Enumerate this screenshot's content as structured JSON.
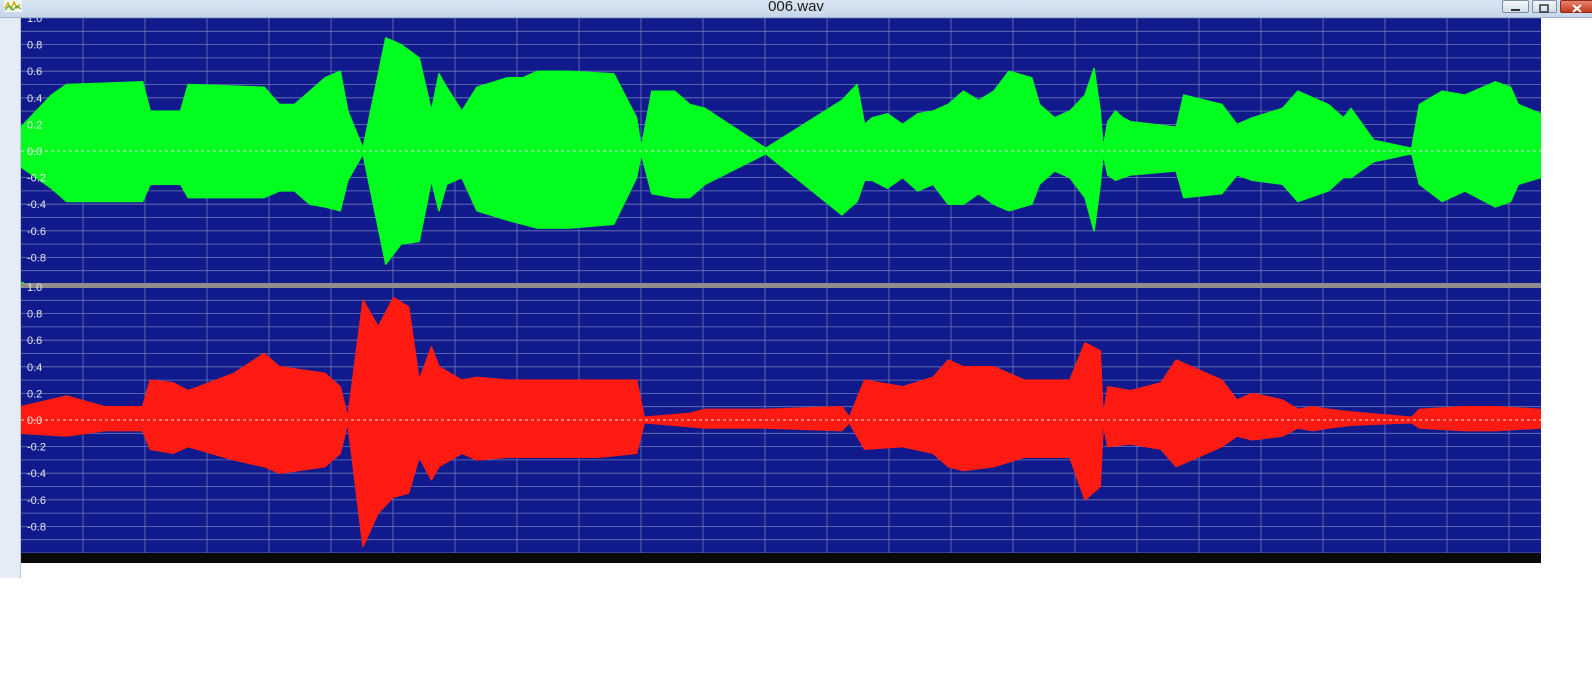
{
  "window": {
    "title": "006.wav",
    "icon": "waveform-app-icon",
    "buttons": {
      "minimize": "minimize-icon",
      "maximize": "maximize-icon",
      "close": "close-icon"
    }
  },
  "colors": {
    "plot_bg": "#101a8c",
    "grid": "#6f78b8",
    "separator": "#8d8d8d",
    "channel1": "#00ff1e",
    "channel2": "#ff1a12",
    "center_line": "#d9d9d9"
  },
  "channels": [
    {
      "name": "",
      "color_key": "channel1",
      "y_ticks": [
        "1.0",
        "0.8",
        "0.6",
        "0.4",
        "0.2",
        "0.0",
        "-0.2",
        "-0.4",
        "-0.6",
        "-0.8"
      ]
    },
    {
      "name": "",
      "color_key": "channel2",
      "y_ticks": [
        "1.0",
        "0.8",
        "0.6",
        "0.4",
        "0.2",
        "0.0",
        "-0.2",
        "-0.4",
        "-0.6",
        "-0.8"
      ]
    }
  ],
  "chart_data": {
    "type": "area",
    "x_domain": [
      0,
      1
    ],
    "ylim": [
      -1,
      1
    ],
    "grid": true,
    "series": [
      {
        "x": [
          0,
          0.02,
          0.03,
          0.08,
          0.085,
          0.105,
          0.11,
          0.16,
          0.17,
          0.18,
          0.19,
          0.2,
          0.21,
          0.215,
          0.225,
          0.24,
          0.25,
          0.262,
          0.27,
          0.275,
          0.28,
          0.29,
          0.3,
          0.32,
          0.33,
          0.34,
          0.36,
          0.39,
          0.405,
          0.408,
          0.415,
          0.43,
          0.44,
          0.45,
          0.49,
          0.54,
          0.55,
          0.555,
          0.56,
          0.57,
          0.58,
          0.59,
          0.6,
          0.61,
          0.62,
          0.63,
          0.64,
          0.65,
          0.665,
          0.67,
          0.68,
          0.69,
          0.7,
          0.706,
          0.71,
          0.712,
          0.715,
          0.72,
          0.725,
          0.73,
          0.76,
          0.765,
          0.79,
          0.8,
          0.81,
          0.83,
          0.84,
          0.86,
          0.87,
          0.875,
          0.89,
          0.915,
          0.92,
          0.935,
          0.95,
          0.97,
          0.98,
          0.985,
          1.0
        ],
        "max": [
          0.18,
          0.42,
          0.5,
          0.52,
          0.3,
          0.3,
          0.5,
          0.48,
          0.35,
          0.35,
          0.45,
          0.55,
          0.6,
          0.3,
          0.02,
          0.85,
          0.8,
          0.7,
          0.3,
          0.58,
          0.48,
          0.3,
          0.48,
          0.55,
          0.55,
          0.6,
          0.6,
          0.58,
          0.25,
          0.02,
          0.45,
          0.45,
          0.35,
          0.32,
          0.02,
          0.38,
          0.5,
          0.2,
          0.25,
          0.28,
          0.2,
          0.28,
          0.3,
          0.35,
          0.45,
          0.38,
          0.45,
          0.6,
          0.55,
          0.35,
          0.25,
          0.3,
          0.42,
          0.62,
          0.3,
          0.02,
          0.22,
          0.3,
          0.25,
          0.22,
          0.18,
          0.42,
          0.35,
          0.2,
          0.25,
          0.32,
          0.45,
          0.35,
          0.25,
          0.32,
          0.08,
          0.02,
          0.35,
          0.45,
          0.42,
          0.52,
          0.48,
          0.35,
          0.28
        ],
        "min": [
          -0.12,
          -0.28,
          -0.38,
          -0.38,
          -0.25,
          -0.25,
          -0.35,
          -0.35,
          -0.3,
          -0.3,
          -0.4,
          -0.42,
          -0.45,
          -0.22,
          -0.02,
          -0.85,
          -0.7,
          -0.68,
          -0.22,
          -0.45,
          -0.25,
          -0.2,
          -0.45,
          -0.52,
          -0.55,
          -0.58,
          -0.58,
          -0.55,
          -0.2,
          -0.02,
          -0.32,
          -0.35,
          -0.35,
          -0.25,
          -0.02,
          -0.48,
          -0.38,
          -0.22,
          -0.22,
          -0.28,
          -0.2,
          -0.3,
          -0.25,
          -0.4,
          -0.4,
          -0.32,
          -0.4,
          -0.45,
          -0.4,
          -0.25,
          -0.15,
          -0.2,
          -0.35,
          -0.6,
          -0.25,
          -0.02,
          -0.18,
          -0.22,
          -0.2,
          -0.18,
          -0.15,
          -0.35,
          -0.32,
          -0.18,
          -0.22,
          -0.25,
          -0.38,
          -0.3,
          -0.2,
          -0.2,
          -0.08,
          -0.02,
          -0.25,
          -0.38,
          -0.3,
          -0.42,
          -0.38,
          -0.25,
          -0.2
        ]
      },
      {
        "x": [
          0,
          0.03,
          0.055,
          0.06,
          0.08,
          0.085,
          0.1,
          0.11,
          0.14,
          0.16,
          0.17,
          0.2,
          0.21,
          0.215,
          0.225,
          0.235,
          0.245,
          0.255,
          0.262,
          0.27,
          0.275,
          0.29,
          0.3,
          0.32,
          0.36,
          0.38,
          0.405,
          0.41,
          0.44,
          0.45,
          0.49,
          0.54,
          0.545,
          0.555,
          0.58,
          0.6,
          0.61,
          0.62,
          0.64,
          0.66,
          0.69,
          0.7,
          0.71,
          0.712,
          0.715,
          0.73,
          0.75,
          0.76,
          0.78,
          0.79,
          0.8,
          0.81,
          0.83,
          0.84,
          0.85,
          0.86,
          0.875,
          0.915,
          0.92,
          0.95,
          0.97,
          1.0
        ],
        "max": [
          0.1,
          0.18,
          0.1,
          0.1,
          0.1,
          0.3,
          0.28,
          0.22,
          0.35,
          0.5,
          0.4,
          0.35,
          0.25,
          0.02,
          0.9,
          0.7,
          0.92,
          0.85,
          0.3,
          0.55,
          0.4,
          0.3,
          0.32,
          0.3,
          0.3,
          0.3,
          0.3,
          0.02,
          0.05,
          0.08,
          0.08,
          0.1,
          0.02,
          0.3,
          0.25,
          0.32,
          0.45,
          0.4,
          0.4,
          0.3,
          0.3,
          0.58,
          0.52,
          0.02,
          0.25,
          0.22,
          0.28,
          0.45,
          0.35,
          0.3,
          0.15,
          0.2,
          0.15,
          0.08,
          0.1,
          0.08,
          0.06,
          0.02,
          0.08,
          0.1,
          0.1,
          0.08
        ],
        "min": [
          -0.1,
          -0.12,
          -0.08,
          -0.08,
          -0.08,
          -0.22,
          -0.25,
          -0.2,
          -0.3,
          -0.35,
          -0.4,
          -0.35,
          -0.25,
          -0.02,
          -0.95,
          -0.7,
          -0.58,
          -0.55,
          -0.28,
          -0.45,
          -0.35,
          -0.25,
          -0.3,
          -0.28,
          -0.28,
          -0.28,
          -0.25,
          -0.02,
          -0.05,
          -0.06,
          -0.06,
          -0.08,
          -0.02,
          -0.22,
          -0.2,
          -0.25,
          -0.35,
          -0.38,
          -0.35,
          -0.28,
          -0.28,
          -0.6,
          -0.5,
          -0.02,
          -0.2,
          -0.18,
          -0.22,
          -0.35,
          -0.25,
          -0.2,
          -0.12,
          -0.15,
          -0.12,
          -0.06,
          -0.08,
          -0.06,
          -0.04,
          -0.02,
          -0.06,
          -0.08,
          -0.08,
          -0.06
        ]
      }
    ]
  }
}
